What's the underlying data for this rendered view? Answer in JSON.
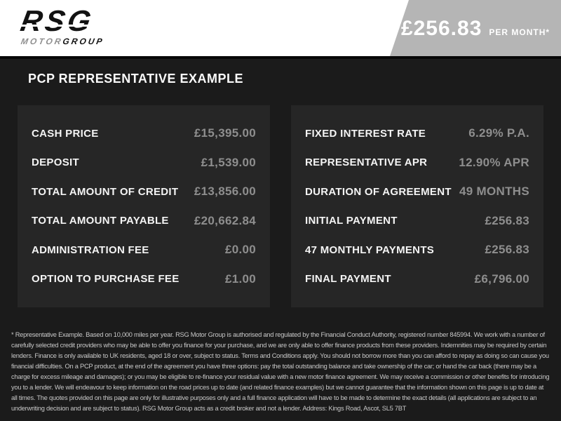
{
  "header": {
    "logo": {
      "primary": "RSG",
      "secondary_left": "MOTOR",
      "secondary_right": "GROUP"
    },
    "price_tag": {
      "amount": "£256.83",
      "period": "PER MONTH*"
    }
  },
  "section_title": "PCP REPRESENTATIVE EXAMPLE",
  "finance_table": {
    "left_rows": [
      {
        "label": "CASH PRICE",
        "value": "£15,395.00"
      },
      {
        "label": "DEPOSIT",
        "value": "£1,539.00"
      },
      {
        "label": "TOTAL AMOUNT OF CREDIT",
        "value": "£13,856.00"
      },
      {
        "label": "TOTAL AMOUNT PAYABLE",
        "value": "£20,662.84"
      },
      {
        "label": "ADMINISTRATION FEE",
        "value": "£0.00"
      },
      {
        "label": "OPTION TO PURCHASE FEE",
        "value": "£1.00"
      }
    ],
    "right_rows": [
      {
        "label": "FIXED INTEREST RATE",
        "value": "6.29% P.A."
      },
      {
        "label": "REPRESENTATIVE APR",
        "value": "12.90% APR"
      },
      {
        "label": "DURATION OF AGREEMENT",
        "value": "49 MONTHS"
      },
      {
        "label": "INITIAL PAYMENT",
        "value": "£256.83"
      },
      {
        "label": "47 MONTHLY PAYMENTS",
        "value": "£256.83"
      },
      {
        "label": "FINAL PAYMENT",
        "value": "£6,796.00"
      }
    ]
  },
  "disclaimer": "* Representative Example. Based on 10,000 miles per year. RSG Motor Group is authorised and regulated by the Financial Conduct Authority, registered number 845994. We work with a number of carefully selected credit providers who may be able to offer you finance for your purchase, and we are only able to offer finance products from these providers. Indemnities may be required by certain lenders. Finance is only available to UK residents, aged 18 or over, subject to status. Terms and Conditions apply. You should not borrow more than you can afford to repay as doing so can cause you financial difficulties. On a PCP product, at the end of the agreement you have three options: pay the total outstanding balance and take ownership of the car; or hand the car back (there may be a charge for excess mileage and damages); or you may be eligible to re-finance your residual value with a new motor finance agreement. We may receive a commission or other benefits for introducing you to a lender. We will endeavour to keep information on the road prices up to date (and related finance examples) but we cannot guarantee that the information shown on this page is up to date at all times. The quotes provided on this page are only for illustrative purposes only and a full finance application will have to be made to determine the exact details (all applications are subject to an underwriting decision and are subject to status). RSG Motor Group acts as a credit broker and not a lender. Address: Kings Road, Ascot, SL5 7BT",
  "colors": {
    "header_bg": "#ffffff",
    "body_bg": "#1b1b1b",
    "panel_bg": "#262626",
    "price_tag_bg": "#b5b5b5",
    "label_text": "#f4f4f4",
    "value_text": "#8e8e8e",
    "disclaimer_text": "#c8c8c8"
  }
}
